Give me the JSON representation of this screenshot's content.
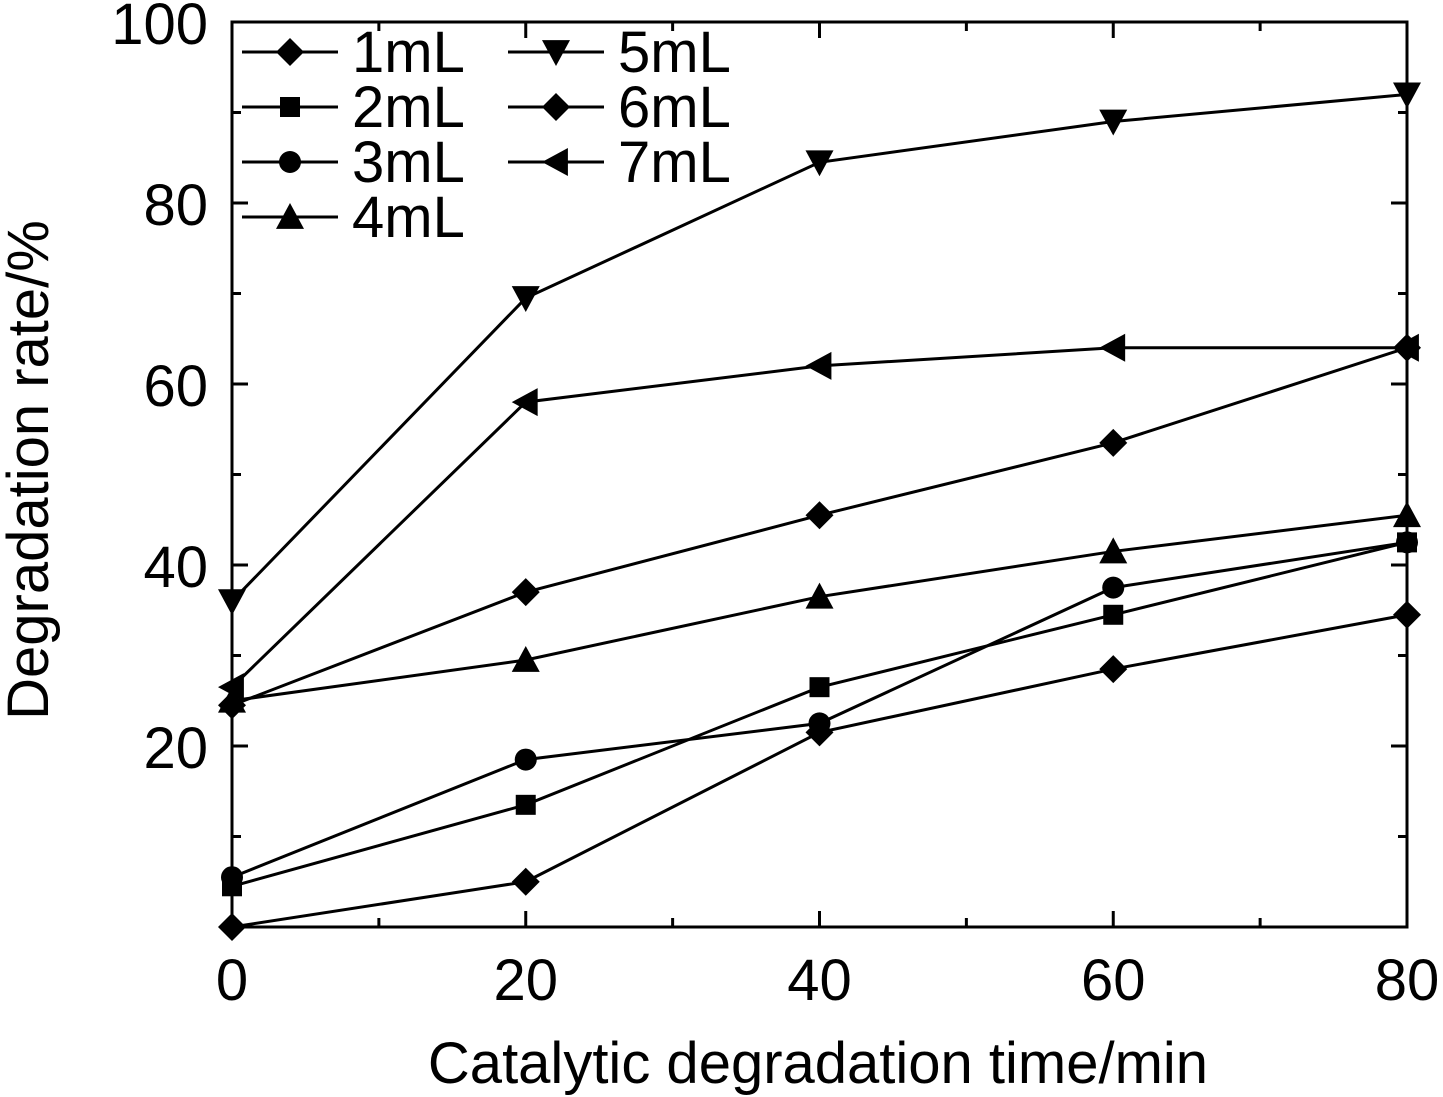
{
  "chart_data": {
    "type": "line",
    "title": "",
    "xlabel": "Catalytic degradation time/min",
    "ylabel": "Degradation rate/%",
    "xlim": [
      0,
      80
    ],
    "ylim": [
      0,
      100
    ],
    "x": [
      0,
      20,
      40,
      60,
      80
    ],
    "x_ticks": [
      0,
      20,
      40,
      60,
      80
    ],
    "x_tick_labels": [
      "0",
      "20",
      "40",
      "60",
      "80"
    ],
    "y_ticks": [
      20,
      40,
      60,
      80,
      100
    ],
    "y_tick_labels": [
      "20",
      "40",
      "60",
      "80",
      "100"
    ],
    "grid": false,
    "legend_position": "top-left",
    "series": [
      {
        "name": "1mL",
        "marker": "diamond",
        "values": [
          0.0,
          5.0,
          21.5,
          28.5,
          34.5
        ]
      },
      {
        "name": "2mL",
        "marker": "square",
        "values": [
          4.5,
          13.5,
          26.5,
          34.5,
          42.5
        ]
      },
      {
        "name": "3mL",
        "marker": "circle",
        "values": [
          5.5,
          18.5,
          22.5,
          37.5,
          42.5
        ]
      },
      {
        "name": "4mL",
        "marker": "triangle-up",
        "values": [
          25.0,
          29.5,
          36.5,
          41.5,
          45.5
        ]
      },
      {
        "name": "5mL",
        "marker": "triangle-down",
        "values": [
          36.0,
          69.5,
          84.5,
          89.0,
          92.0
        ]
      },
      {
        "name": "6mL",
        "marker": "diamond",
        "values": [
          24.5,
          37.0,
          45.5,
          53.5,
          64.0
        ]
      },
      {
        "name": "7mL",
        "marker": "triangle-left",
        "values": [
          26.5,
          58.0,
          62.0,
          64.0,
          64.0
        ]
      }
    ]
  }
}
